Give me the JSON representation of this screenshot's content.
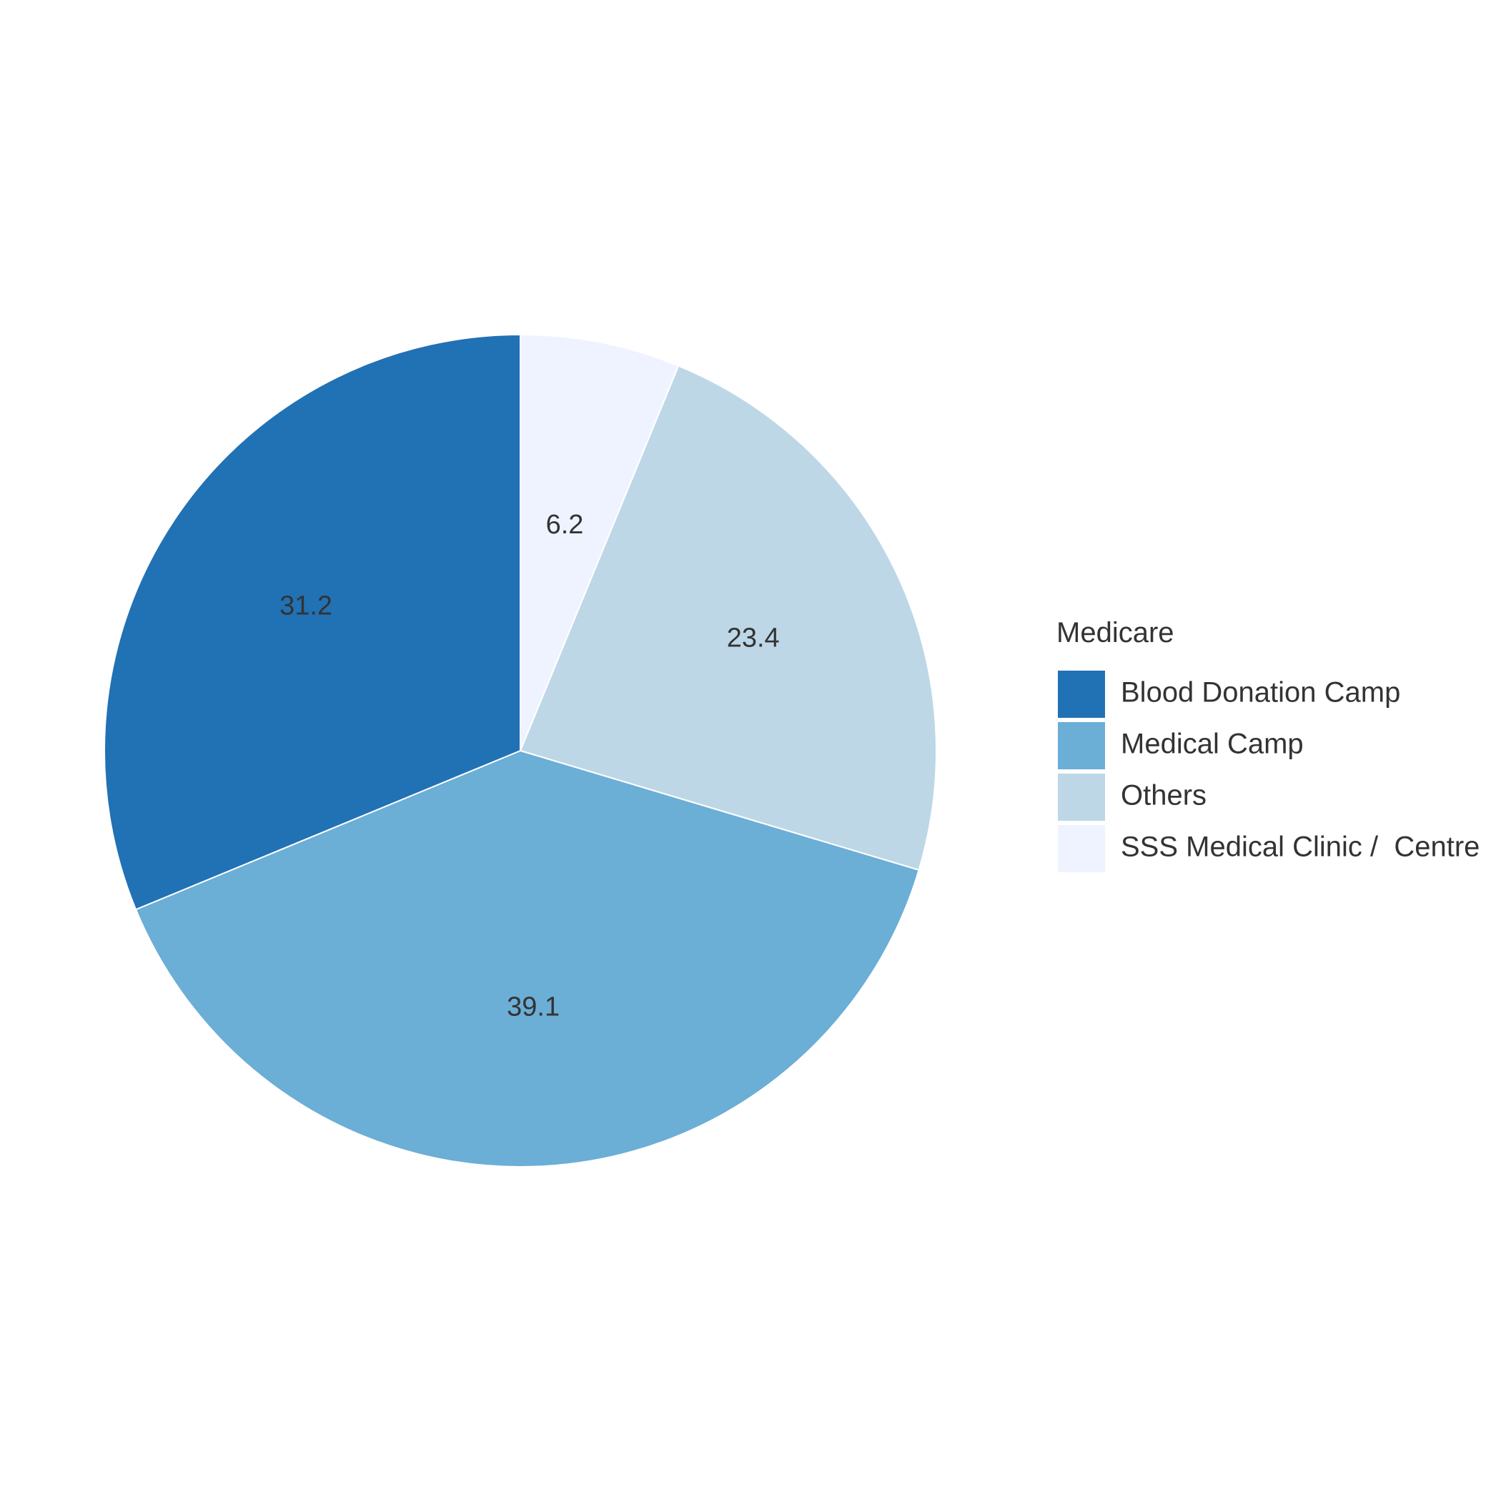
{
  "chart_data": {
    "type": "pie",
    "legend_title": "Medicare",
    "legend_position": "right",
    "slices": [
      {
        "label": "SSS Medical Clinic /  Centre",
        "value": 6.2,
        "color": "#EFF3FF"
      },
      {
        "label": "Others",
        "value": 23.4,
        "color": "#BDD7E7"
      },
      {
        "label": "Medical Camp",
        "value": 39.1,
        "color": "#6BAED6"
      },
      {
        "label": "Blood Donation Camp",
        "value": 31.2,
        "color": "#2171B5"
      }
    ],
    "legend_order": [
      "Blood Donation Camp",
      "Medical Camp",
      "Others",
      "SSS Medical Clinic /  Centre"
    ],
    "start_angle": "12 o'clock",
    "direction": "clockwise",
    "text_color": "#333333"
  }
}
